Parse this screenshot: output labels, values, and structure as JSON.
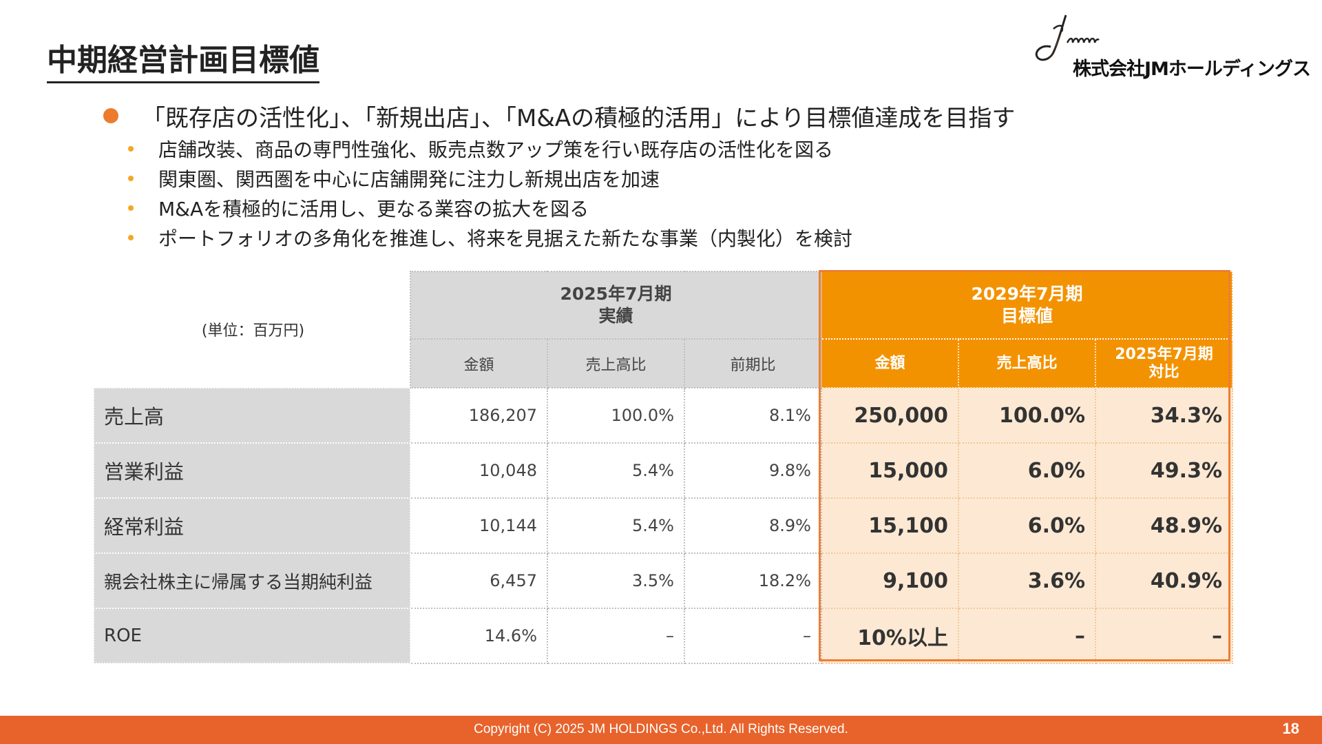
{
  "page": {
    "title": "中期経営計画目標値",
    "page_number": "18",
    "copyright": "Copyright (C) 2025 JM HOLDINGS Co.,Ltd. All Rights Reserved."
  },
  "logo": {
    "company_name": "株式会社JMホールディングス",
    "accent_color": "#ec7b2e"
  },
  "bullets": {
    "main": "「既存店の活性化」、「新規出店」、「M&Aの積極的活用」により目標値達成を目指す",
    "sub": [
      "店舗改装、商品の専門性強化、販売点数アップ策を行い既存店の活性化を図る",
      "関東圏、関西圏を中心に店舗開発に注力し新規出店を加速",
      "M&Aを積極的に活用し、更なる業容の拡大を図る",
      "ポートフォリオの多角化を推進し、将来を見据えた新たな事業（内製化）を検討"
    ]
  },
  "table": {
    "unit": "(単位：百万円)",
    "group_actual": {
      "line1": "2025年7月期",
      "line2": "実績"
    },
    "group_target": {
      "line1": "2029年7月期",
      "line2": "目標値"
    },
    "actual_columns": [
      "金額",
      "売上高比",
      "前期比"
    ],
    "target_columns": [
      {
        "line1": "金額",
        "line2": ""
      },
      {
        "line1": "売上高比",
        "line2": ""
      },
      {
        "line1": "2025年7月期",
        "line2": "対比"
      }
    ],
    "rows": [
      {
        "label": "売上高",
        "actual": [
          "186,207",
          "100.0%",
          "8.1%"
        ],
        "target": [
          "250,000",
          "100.0%",
          "34.3%"
        ]
      },
      {
        "label": "営業利益",
        "actual": [
          "10,048",
          "5.4%",
          "9.8%"
        ],
        "target": [
          "15,000",
          "6.0%",
          "49.3%"
        ]
      },
      {
        "label": "経常利益",
        "actual": [
          "10,144",
          "5.4%",
          "8.9%"
        ],
        "target": [
          "15,100",
          "6.0%",
          "48.9%"
        ]
      },
      {
        "label": "親会社株主に帰属する当期純利益",
        "actual": [
          "6,457",
          "3.5%",
          "18.2%"
        ],
        "target": [
          "9,100",
          "3.6%",
          "40.9%"
        ]
      },
      {
        "label": "ROE",
        "actual": [
          "14.6%",
          "–",
          "–"
        ],
        "target": [
          "10%以上",
          "–",
          "–"
        ]
      }
    ]
  },
  "colors": {
    "orange_header": "#f39200",
    "orange_frame": "#ef7d30",
    "orange_fill": "#fde9d3",
    "footer_bar": "#e8632b",
    "gray_header": "#d9d9d9"
  }
}
